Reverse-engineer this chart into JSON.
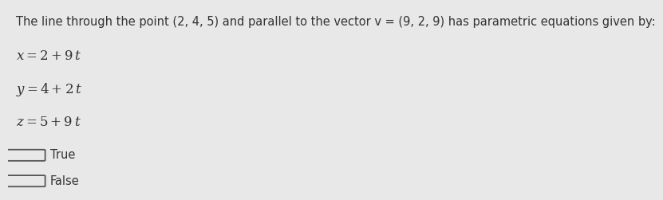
{
  "background_color": "#e8e8e8",
  "header_text": "The line through the point (2, 4, 5) and parallel to the vector v = (9, 2, 9) has parametric equations given by:",
  "eq1": "$x = 2 + 9\\,t$",
  "eq2": "$y = 4 + 2\\,t$",
  "eq3": "$z = 5 + 9\\,t$",
  "option1": "True",
  "option2": "False",
  "header_fontsize": 10.5,
  "eq_fontsize": 12,
  "option_fontsize": 10.5,
  "text_color": "#333333",
  "radio_color": "#555555"
}
